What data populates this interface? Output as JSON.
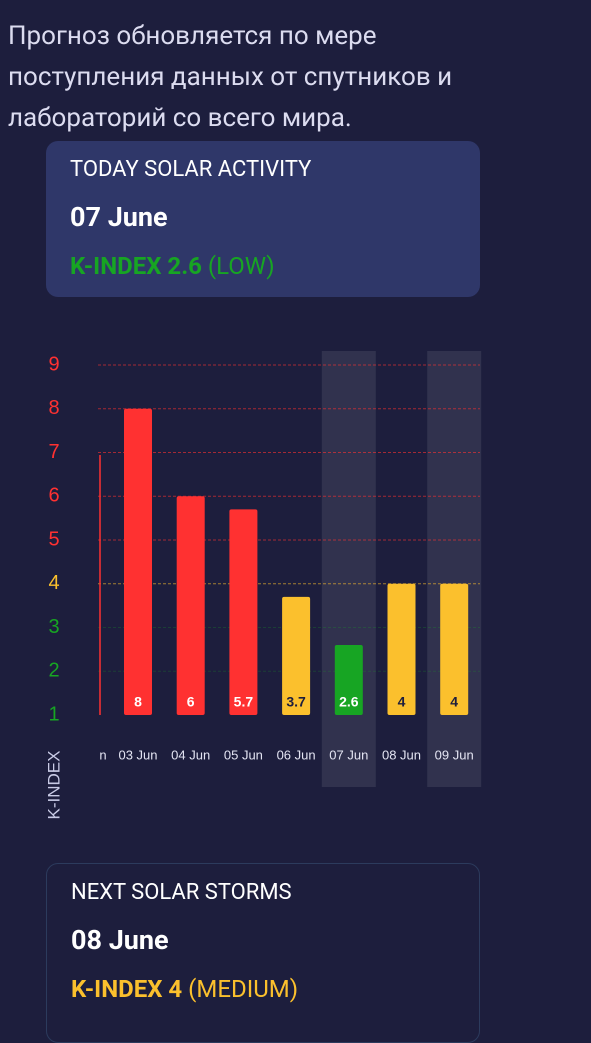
{
  "intro": {
    "lines": [
      "Прогноз обновляется по мере",
      "поступления данных от спутников и",
      "лабораторий со всего мира."
    ]
  },
  "today": {
    "title": "TODAY SOLAR ACTIVITY",
    "date": "07 June",
    "index": "K-INDEX 2.6",
    "level": "(LOW)",
    "color": "#17a523"
  },
  "next": {
    "title": "NEXT SOLAR STORMS",
    "date": "08 June",
    "index": "K-INDEX 4",
    "level": "(MEDIUM)",
    "color": "#fbc02d"
  },
  "chart_data": {
    "type": "bar",
    "y_label": "K-INDEX",
    "categories": [
      "n",
      "03 Jun",
      "04 Jun",
      "05 Jun",
      "06 Jun",
      "07 Jun",
      "08 Jun",
      "09 Jun"
    ],
    "values": [
      null,
      8,
      6,
      5.7,
      3.7,
      2.6,
      4,
      4
    ],
    "colors": [
      null,
      "#ff3131",
      "#ff3131",
      "#ff3131",
      "#fbc02d",
      "#17a523",
      "#fbc02d",
      "#fbc02d"
    ],
    "ylim": [
      1,
      9
    ],
    "yticks": [
      1,
      2,
      3,
      4,
      5,
      6,
      7,
      8,
      9
    ],
    "ytick_colors": [
      "#17a523",
      "#17a523",
      "#17a523",
      "#fbc02d",
      "#ff3131",
      "#ff3131",
      "#ff3131",
      "#ff3131",
      "#ff3131"
    ],
    "highlighted": [
      5,
      7
    ],
    "grid": true
  }
}
